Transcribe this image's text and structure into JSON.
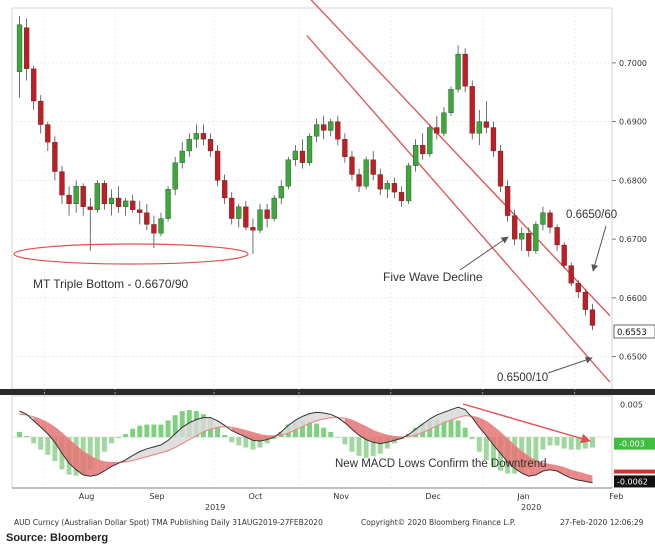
{
  "chart_data": {
    "type": "candlestick",
    "instrument": "AUD Curncy (Australian Dollar Spot)",
    "x_labels": [
      "Aug",
      "Sep",
      "Oct",
      "Nov",
      "Dec",
      "Jan",
      "Feb"
    ],
    "year_labels": [
      "2019",
      "2020"
    ],
    "price_ticks": [
      "0.7000",
      "0.6900",
      "0.6800",
      "0.6700",
      "0.6600",
      "0.6500"
    ],
    "price_range": [
      0.645,
      0.709
    ],
    "last_price_label": "0.6553",
    "ohlc": [
      [
        0.6985,
        0.708,
        0.694,
        0.7065
      ],
      [
        0.706,
        0.7075,
        0.697,
        0.699
      ],
      [
        0.699,
        0.6995,
        0.692,
        0.6935
      ],
      [
        0.6935,
        0.6945,
        0.688,
        0.6895
      ],
      [
        0.6895,
        0.69,
        0.685,
        0.6865
      ],
      [
        0.6865,
        0.6875,
        0.68,
        0.6815
      ],
      [
        0.6815,
        0.6825,
        0.676,
        0.6775
      ],
      [
        0.6775,
        0.679,
        0.674,
        0.676
      ],
      [
        0.676,
        0.68,
        0.6745,
        0.679
      ],
      [
        0.679,
        0.6795,
        0.674,
        0.6755
      ],
      [
        0.6755,
        0.677,
        0.668,
        0.675
      ],
      [
        0.675,
        0.68,
        0.6745,
        0.6795
      ],
      [
        0.6795,
        0.68,
        0.675,
        0.676
      ],
      [
        0.676,
        0.6785,
        0.674,
        0.677
      ],
      [
        0.677,
        0.679,
        0.6745,
        0.6755
      ],
      [
        0.6755,
        0.677,
        0.674,
        0.6765
      ],
      [
        0.6765,
        0.6775,
        0.6745,
        0.675
      ],
      [
        0.675,
        0.6765,
        0.6725,
        0.6745
      ],
      [
        0.6745,
        0.676,
        0.6715,
        0.6725
      ],
      [
        0.6725,
        0.674,
        0.6685,
        0.671
      ],
      [
        0.671,
        0.6745,
        0.6705,
        0.6735
      ],
      [
        0.6735,
        0.679,
        0.673,
        0.6785
      ],
      [
        0.6785,
        0.684,
        0.6775,
        0.683
      ],
      [
        0.683,
        0.6865,
        0.682,
        0.685
      ],
      [
        0.685,
        0.688,
        0.684,
        0.687
      ],
      [
        0.687,
        0.6895,
        0.6855,
        0.688
      ],
      [
        0.688,
        0.6895,
        0.686,
        0.687
      ],
      [
        0.687,
        0.688,
        0.684,
        0.685
      ],
      [
        0.685,
        0.686,
        0.679,
        0.68
      ],
      [
        0.68,
        0.681,
        0.676,
        0.677
      ],
      [
        0.677,
        0.678,
        0.6725,
        0.6735
      ],
      [
        0.6735,
        0.676,
        0.672,
        0.6755
      ],
      [
        0.6755,
        0.6765,
        0.6715,
        0.672
      ],
      [
        0.672,
        0.6735,
        0.6675,
        0.6715
      ],
      [
        0.6715,
        0.676,
        0.671,
        0.675
      ],
      [
        0.675,
        0.676,
        0.672,
        0.6735
      ],
      [
        0.6735,
        0.6775,
        0.673,
        0.677
      ],
      [
        0.677,
        0.68,
        0.676,
        0.679
      ],
      [
        0.679,
        0.684,
        0.6785,
        0.6835
      ],
      [
        0.6835,
        0.686,
        0.6825,
        0.685
      ],
      [
        0.685,
        0.687,
        0.682,
        0.683
      ],
      [
        0.683,
        0.688,
        0.6825,
        0.6875
      ],
      [
        0.6875,
        0.6905,
        0.6865,
        0.6895
      ],
      [
        0.6895,
        0.691,
        0.687,
        0.6885
      ],
      [
        0.6885,
        0.6905,
        0.6875,
        0.69
      ],
      [
        0.69,
        0.691,
        0.686,
        0.687
      ],
      [
        0.687,
        0.688,
        0.683,
        0.684
      ],
      [
        0.684,
        0.685,
        0.68,
        0.681
      ],
      [
        0.681,
        0.682,
        0.678,
        0.679
      ],
      [
        0.679,
        0.684,
        0.6785,
        0.6835
      ],
      [
        0.6835,
        0.685,
        0.68,
        0.681
      ],
      [
        0.681,
        0.682,
        0.6775,
        0.6785
      ],
      [
        0.6785,
        0.68,
        0.677,
        0.6795
      ],
      [
        0.6795,
        0.6805,
        0.677,
        0.678
      ],
      [
        0.678,
        0.679,
        0.6755,
        0.6765
      ],
      [
        0.6765,
        0.683,
        0.676,
        0.6825
      ],
      [
        0.6825,
        0.687,
        0.6815,
        0.686
      ],
      [
        0.686,
        0.688,
        0.6835,
        0.6845
      ],
      [
        0.6845,
        0.6895,
        0.684,
        0.689
      ],
      [
        0.689,
        0.691,
        0.687,
        0.688
      ],
      [
        0.688,
        0.6925,
        0.6875,
        0.6915
      ],
      [
        0.6915,
        0.696,
        0.691,
        0.6955
      ],
      [
        0.6955,
        0.703,
        0.695,
        0.7015
      ],
      [
        0.7015,
        0.7025,
        0.695,
        0.696
      ],
      [
        0.696,
        0.697,
        0.687,
        0.688
      ],
      [
        0.688,
        0.692,
        0.686,
        0.69
      ],
      [
        0.69,
        0.6935,
        0.688,
        0.689
      ],
      [
        0.689,
        0.69,
        0.684,
        0.685
      ],
      [
        0.685,
        0.686,
        0.678,
        0.679
      ],
      [
        0.679,
        0.68,
        0.673,
        0.674
      ],
      [
        0.674,
        0.675,
        0.669,
        0.67
      ],
      [
        0.67,
        0.672,
        0.668,
        0.671
      ],
      [
        0.671,
        0.672,
        0.667,
        0.668
      ],
      [
        0.668,
        0.673,
        0.6675,
        0.6725
      ],
      [
        0.6725,
        0.6755,
        0.6715,
        0.6745
      ],
      [
        0.6745,
        0.675,
        0.671,
        0.672
      ],
      [
        0.672,
        0.6725,
        0.668,
        0.669
      ],
      [
        0.669,
        0.6695,
        0.665,
        0.6655
      ],
      [
        0.6655,
        0.666,
        0.662,
        0.6625
      ],
      [
        0.6625,
        0.663,
        0.66,
        0.661
      ],
      [
        0.661,
        0.6615,
        0.657,
        0.658
      ],
      [
        0.658,
        0.659,
        0.6545,
        0.6553
      ]
    ],
    "channel": {
      "upper": [
        [
          0.505,
          0.7105
        ],
        [
          1.0,
          0.659
        ]
      ],
      "lower": [
        [
          0.505,
          0.705
        ],
        [
          1.0,
          0.647
        ]
      ]
    },
    "annotations": {
      "triple_bottom": "MT Triple Bottom - 0.6670/90",
      "wave": "Five Wave Decline",
      "level_high": "0.6650/60",
      "level_low": "0.6500/10",
      "macd": "New MACD Lows Confirm the Downtrend"
    },
    "macd": {
      "ticks": [
        "0.005",
        "-0.003",
        "-0.0062"
      ],
      "range": [
        -0.0075,
        0.006
      ],
      "macd": [
        0.004,
        0.0035,
        0.0025,
        0.0015,
        0.0005,
        -0.0008,
        -0.0025,
        -0.004,
        -0.005,
        -0.0058,
        -0.006,
        -0.0058,
        -0.0052,
        -0.0045,
        -0.004,
        -0.0035,
        -0.0028,
        -0.0022,
        -0.0018,
        -0.0015,
        -0.0012,
        -0.0005,
        0.0005,
        0.0015,
        0.0022,
        0.0027,
        0.003,
        0.003,
        0.0025,
        0.0018,
        0.001,
        0.0005,
        0.0,
        -0.0005,
        -0.0006,
        -0.0004,
        0.0,
        0.0008,
        0.0018,
        0.0026,
        0.0032,
        0.0036,
        0.0038,
        0.0037,
        0.0035,
        0.003,
        0.0022,
        0.0012,
        0.0003,
        -0.0004,
        -0.0008,
        -0.001,
        -0.0008,
        -0.0005,
        -0.0002,
        0.0004,
        0.0012,
        0.002,
        0.0028,
        0.0034,
        0.0038,
        0.0042,
        0.0046,
        0.0042,
        0.003,
        0.0015,
        0.0002,
        -0.0012,
        -0.0025,
        -0.0038,
        -0.0048,
        -0.0055,
        -0.006,
        -0.0058,
        -0.0052,
        -0.005,
        -0.0052,
        -0.0058,
        -0.0063,
        -0.0066,
        -0.0068,
        -0.007
      ],
      "signal": [
        0.0035,
        0.0034,
        0.0031,
        0.0027,
        0.0022,
        0.0015,
        0.0006,
        -0.0004,
        -0.0013,
        -0.0022,
        -0.0029,
        -0.0035,
        -0.0038,
        -0.0039,
        -0.0039,
        -0.0038,
        -0.0036,
        -0.0033,
        -0.003,
        -0.0027,
        -0.0024,
        -0.0021,
        -0.0016,
        -0.001,
        -0.0004,
        0.0002,
        0.0008,
        0.0012,
        0.0015,
        0.0016,
        0.0015,
        0.0013,
        0.001,
        0.0007,
        0.0004,
        0.0002,
        0.0002,
        0.0003,
        0.0006,
        0.0011,
        0.0016,
        0.0021,
        0.0025,
        0.0028,
        0.003,
        0.003,
        0.0029,
        0.0026,
        0.0021,
        0.0016,
        0.001,
        0.0006,
        0.0003,
        0.0001,
        0.0,
        0.0001,
        0.0003,
        0.0007,
        0.0012,
        0.0017,
        0.0022,
        0.0026,
        0.003,
        0.0033,
        0.0032,
        0.0029,
        0.0024,
        0.0016,
        0.0007,
        -0.0003,
        -0.0013,
        -0.0022,
        -0.003,
        -0.0036,
        -0.004,
        -0.0042,
        -0.0044,
        -0.0047,
        -0.0051,
        -0.0054,
        -0.0057,
        -0.006
      ]
    }
  },
  "footer": {
    "left": "AUD Curncy (Australian Dollar Spot) TMA Publishing  Daily 31AUG2019-27FEB2020",
    "center": "Copyright© 2020 Bloomberg Finance L.P.",
    "right": "27-Feb-2020 12:06:29"
  },
  "source": "Source: Bloomberg",
  "colors": {
    "up": "#3aa83a",
    "down": "#c01e24",
    "channel": "#e05050",
    "signal_line": "#e88888",
    "annotation": "#333333"
  }
}
